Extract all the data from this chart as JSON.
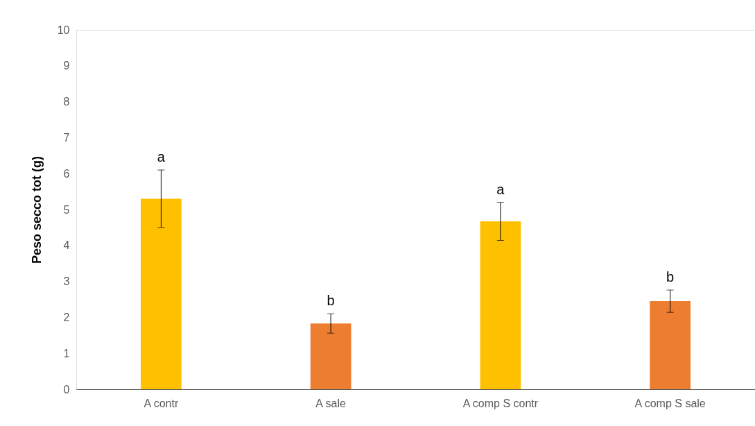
{
  "chart_data": {
    "type": "bar",
    "ylabel": "Peso secco tot (g)",
    "categories": [
      "A contr",
      "A sale",
      "A comp S contr",
      "A comp S sale"
    ],
    "values": [
      5.3,
      1.83,
      4.67,
      2.45
    ],
    "colors": [
      "#ffc000",
      "#ed7d31",
      "#ffc000",
      "#ed7d31"
    ],
    "errors": [
      0.8,
      0.27,
      0.53,
      0.31
    ],
    "ylim": [
      0,
      10
    ],
    "yticks": [
      0,
      1,
      2,
      3,
      4,
      5,
      6,
      7,
      8,
      9,
      10
    ],
    "grid": false,
    "annotations": [
      "a",
      "b",
      "a",
      "b"
    ]
  }
}
